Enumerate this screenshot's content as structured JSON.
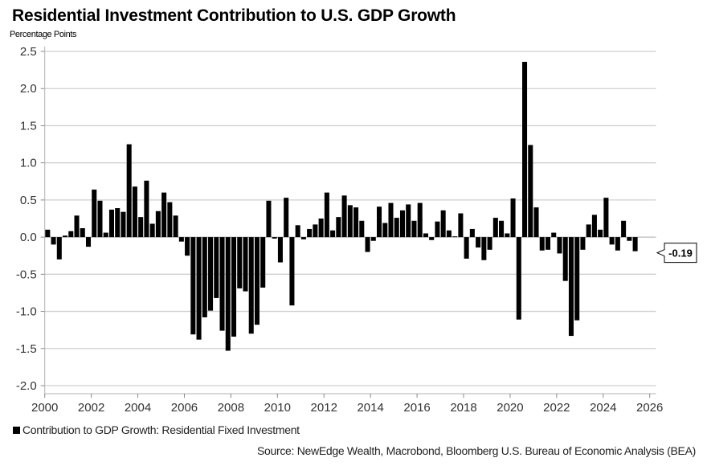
{
  "chart_data": {
    "type": "bar",
    "title": "Residential Investment Contribution to U.S. GDP Growth",
    "ylabel": "Percentage Points",
    "xlabel": "",
    "ylim": [
      -2.0,
      2.5
    ],
    "xlim": [
      2000,
      2026
    ],
    "yticks": [
      "2.5",
      "2.0",
      "1.5",
      "1.0",
      "0.5",
      "0.0",
      "-0.5",
      "-1.0",
      "-1.5",
      "-2.0"
    ],
    "ytick_values": [
      2.5,
      2.0,
      1.5,
      1.0,
      0.5,
      0.0,
      -0.5,
      -1.0,
      -1.5,
      -2.0
    ],
    "xticks": [
      "2000",
      "2002",
      "2004",
      "2006",
      "2008",
      "2010",
      "2012",
      "2014",
      "2016",
      "2018",
      "2020",
      "2022",
      "2024",
      "2026"
    ],
    "xtick_values": [
      2000,
      2002,
      2004,
      2006,
      2008,
      2010,
      2012,
      2014,
      2016,
      2018,
      2020,
      2022,
      2024,
      2026
    ],
    "grid": true,
    "legend_position": "bottom-left",
    "frequency": "quarterly",
    "start_period": "2000Q1",
    "series": [
      {
        "name": "Contribution to GDP Growth: Residential Fixed Investment",
        "color": "#000000",
        "values": [
          0.1,
          -0.1,
          -0.3,
          0.02,
          0.08,
          0.29,
          0.12,
          -0.13,
          0.64,
          0.49,
          0.06,
          0.37,
          0.39,
          0.34,
          1.25,
          0.68,
          0.27,
          0.76,
          0.18,
          0.35,
          0.6,
          0.47,
          0.29,
          -0.06,
          -0.25,
          -1.31,
          -1.38,
          -1.08,
          -0.99,
          -0.82,
          -1.26,
          -1.53,
          -1.34,
          -0.69,
          -0.73,
          -1.3,
          -1.18,
          -0.68,
          0.49,
          -0.02,
          -0.34,
          0.53,
          -0.92,
          0.16,
          -0.03,
          0.11,
          0.17,
          0.25,
          0.6,
          0.09,
          0.27,
          0.56,
          0.43,
          0.4,
          0.22,
          -0.2,
          -0.05,
          0.41,
          0.19,
          0.46,
          0.26,
          0.36,
          0.44,
          0.22,
          0.46,
          0.05,
          -0.04,
          0.21,
          0.36,
          0.09,
          0.01,
          0.32,
          -0.29,
          0.11,
          -0.14,
          -0.31,
          -0.17,
          0.26,
          0.22,
          0.05,
          0.52,
          -1.11,
          2.36,
          1.24,
          0.4,
          -0.18,
          -0.17,
          0.06,
          -0.22,
          -0.59,
          -1.33,
          -1.12,
          -0.17,
          0.17,
          0.3,
          0.1,
          0.53,
          -0.1,
          -0.18,
          0.22,
          -0.05,
          -0.19
        ]
      }
    ],
    "annotations": [
      {
        "text": "-0.19",
        "value": -0.19,
        "type": "last-value-callout"
      }
    ]
  },
  "legend": {
    "label": "Contribution to GDP Growth: Residential Fixed Investment"
  },
  "source": "Source: NewEdge Wealth, Macrobond, Bloomberg U.S. Bureau of Economic Analysis (BEA)"
}
